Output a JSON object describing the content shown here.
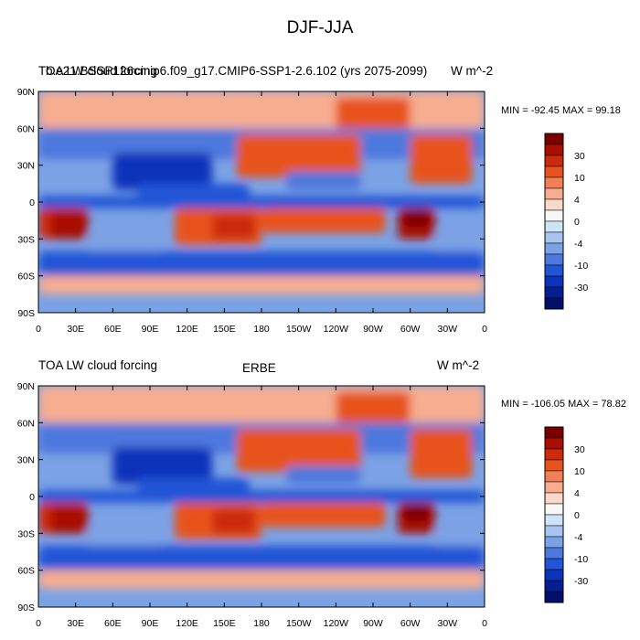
{
  "figure": {
    "title": "DJF-JJA"
  },
  "chart_data": [
    {
      "type": "heatmap",
      "left_title": "TOA LW cloud forcing",
      "center_title": "b.e21.BSSP126cmip6.f09_g17.CMIP6-SSP1-2.6.102 (yrs 2075-2099)",
      "units": "W m^-2",
      "min_max_text": "MIN = -92.45 MAX =  99.18",
      "xticks": [
        "0",
        "30E",
        "60E",
        "90E",
        "120E",
        "150E",
        "180",
        "150W",
        "120W",
        "90W",
        "60W",
        "30W",
        "0"
      ],
      "yticks": [
        "90N",
        "60N",
        "30N",
        "0",
        "30S",
        "60S",
        "90S"
      ],
      "colorbar_levels": [
        "30",
        "10",
        "4",
        "0",
        "-4",
        "-10",
        "-30"
      ]
    },
    {
      "type": "heatmap",
      "left_title": "TOA LW cloud forcing",
      "center_title": "ERBE",
      "units": "W m^-2",
      "min_max_text": "MIN = -106.05 MAX =  78.82",
      "xticks": [
        "0",
        "30E",
        "60E",
        "90E",
        "120E",
        "150E",
        "180",
        "150W",
        "120W",
        "90W",
        "60W",
        "30W",
        "0"
      ],
      "yticks": [
        "90N",
        "60N",
        "30N",
        "0",
        "30S",
        "60S",
        "90S"
      ],
      "colorbar_levels": [
        "30",
        "10",
        "4",
        "0",
        "-4",
        "-10",
        "-30"
      ]
    }
  ],
  "colors": {
    "colorbar": [
      "#7a0000",
      "#a80f00",
      "#cc2a0a",
      "#e8521c",
      "#f28057",
      "#f7ad90",
      "#fbd9c8",
      "#f7f7f7",
      "#cfe3f6",
      "#a7c5ee",
      "#7ba2e5",
      "#4d78dd",
      "#2255d6",
      "#0a33ba",
      "#061f90",
      "#03106a"
    ]
  }
}
